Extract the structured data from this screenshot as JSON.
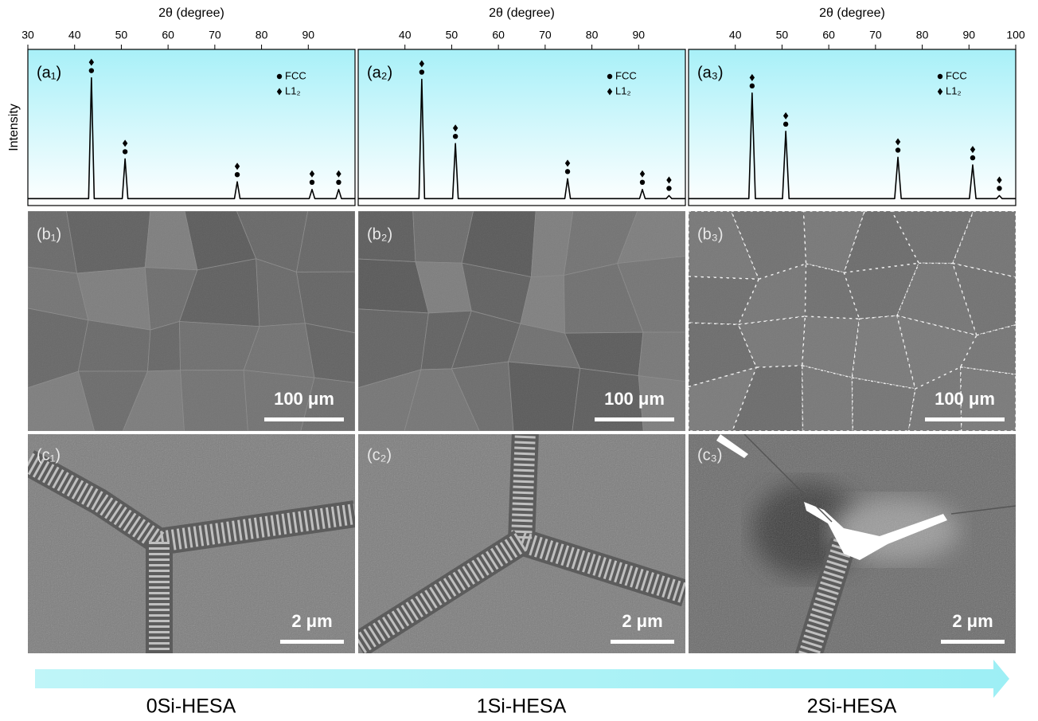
{
  "chart_data": [
    {
      "type": "line",
      "label": "(a₁)",
      "xlabel": "2θ (degree)",
      "ylabel": "Intensity",
      "legend_items": [
        "FCC",
        "L1₂"
      ],
      "color": "#000000",
      "x": [
        30,
        43.0,
        43.6,
        44.2,
        50.2,
        50.8,
        51.4,
        74.2,
        74.8,
        75.4,
        90.2,
        90.8,
        91.4,
        95.9,
        96.5,
        97.1,
        100
      ],
      "values": [
        4,
        4,
        83,
        4,
        4,
        30,
        4,
        4,
        15,
        4,
        4,
        10,
        4,
        4,
        10,
        4,
        4
      ],
      "xlim": [
        30,
        100
      ],
      "xticks": [
        30,
        40,
        50,
        60,
        70,
        80,
        90
      ],
      "ylim": [
        0,
        100
      ]
    },
    {
      "type": "line",
      "label": "(a₂)",
      "xlabel": "2θ (degree)",
      "legend_items": [
        "FCC",
        "L1₂"
      ],
      "color": "#000000",
      "x": [
        30,
        43.0,
        43.6,
        44.2,
        50.2,
        50.8,
        51.4,
        74.2,
        74.8,
        75.4,
        90.2,
        90.8,
        91.4,
        95.9,
        96.5,
        97.1,
        100
      ],
      "values": [
        4,
        4,
        82,
        4,
        4,
        40,
        4,
        4,
        17,
        4,
        4,
        10,
        4,
        4,
        6,
        4,
        4
      ],
      "xlim": [
        30,
        100
      ],
      "xticks": [
        40,
        50,
        60,
        70,
        80,
        90
      ],
      "ylim": [
        0,
        100
      ]
    },
    {
      "type": "line",
      "label": "(a₃)",
      "xlabel": "2θ (degree)",
      "legend_items": [
        "FCC",
        "L1₂"
      ],
      "color": "#000000",
      "x": [
        30,
        42.9,
        43.6,
        44.3,
        50.1,
        50.8,
        51.5,
        74.1,
        74.8,
        75.5,
        90.1,
        90.8,
        91.5,
        95.9,
        96.5,
        97.1,
        100
      ],
      "values": [
        4,
        4,
        73,
        4,
        4,
        48,
        4,
        4,
        31,
        4,
        4,
        26,
        4,
        4,
        6,
        4,
        4
      ],
      "xlim": [
        30,
        100
      ],
      "xticks": [
        40,
        50,
        60,
        70,
        80,
        90,
        100
      ],
      "ylim": [
        0,
        100
      ]
    }
  ],
  "sem_low": [
    {
      "label": "(b₁)",
      "scale_bar": "100 μm"
    },
    {
      "label": "(b₂)",
      "scale_bar": "100 μm"
    },
    {
      "label": "(b₃)",
      "scale_bar": "100 μm"
    }
  ],
  "sem_high": [
    {
      "label": "(c₁)",
      "scale_bar": "2 μm"
    },
    {
      "label": "(c₂)",
      "scale_bar": "2 μm"
    },
    {
      "label": "(c₃)",
      "scale_bar": "2 μm"
    }
  ],
  "samples": [
    "0Si-HESA",
    "1Si-HESA",
    "2Si-HESA"
  ]
}
